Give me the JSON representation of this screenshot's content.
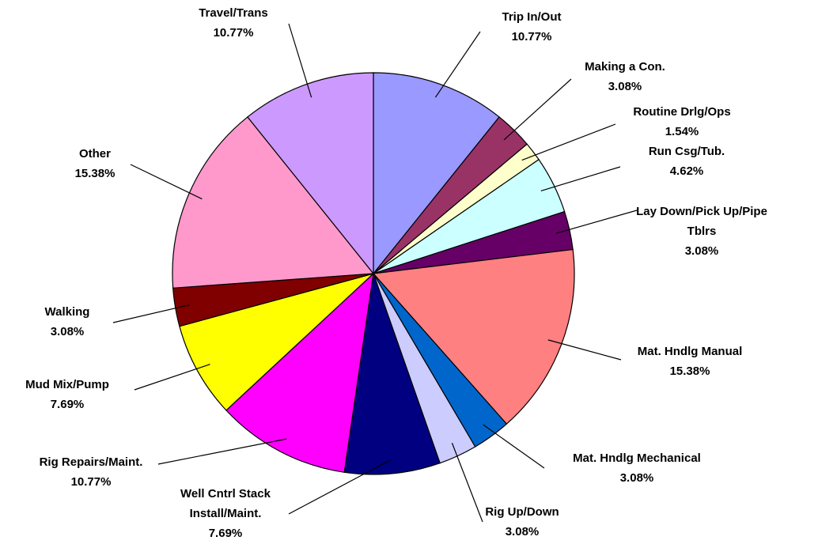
{
  "chart_data": {
    "type": "pie",
    "categories": [
      "Trip In/Out",
      "Making a Con.",
      "Routine Drlg/Ops",
      "Run Csg/Tub.",
      "Lay Down/Pick Up/Pipe Tblrs",
      "Mat. Hndlg Manual",
      "Mat. Hndlg Mechanical",
      "Rig Up/Down",
      "Well Cntrl Stack Install/Maint.",
      "Rig Repairs/Maint.",
      "Mud Mix/Pump",
      "Walking",
      "Other",
      "Travel/Trans"
    ],
    "values": [
      10.77,
      3.08,
      1.54,
      4.62,
      3.08,
      15.38,
      3.08,
      3.08,
      7.69,
      10.77,
      7.69,
      3.08,
      15.38,
      10.77
    ],
    "value_labels": [
      "10.77%",
      "3.08%",
      "1.54%",
      "4.62%",
      "3.08%",
      "15.38%",
      "3.08%",
      "3.08%",
      "7.69%",
      "10.77%",
      "7.69%",
      "3.08%",
      "15.38%",
      "10.77%"
    ],
    "colors": [
      "#9999ff",
      "#993366",
      "#ffffcc",
      "#ccffff",
      "#660066",
      "#ff8080",
      "#0066cc",
      "#ccccff",
      "#000080",
      "#ff00ff",
      "#ffff00",
      "#800000",
      "#ff99cc",
      "#cc99ff"
    ]
  }
}
